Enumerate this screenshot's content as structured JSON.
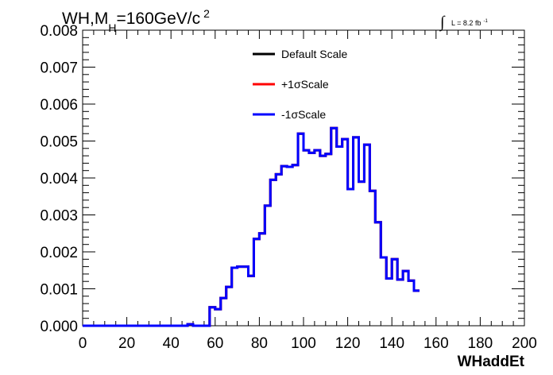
{
  "chart_data": {
    "type": "line",
    "title": {
      "prefix": "WH,M",
      "subscript": "H",
      "suffix": "=160GeV/c",
      "superscript": "2"
    },
    "luminosity": {
      "symbol": "∫",
      "text": "L = 8.2 fb",
      "superscript": "-1"
    },
    "xlabel": "WHaddEt",
    "ylabel": "",
    "xlim": [
      0,
      200
    ],
    "ylim": [
      0,
      0.008
    ],
    "x_ticks": [
      0,
      20,
      40,
      60,
      80,
      100,
      120,
      140,
      160,
      180,
      200
    ],
    "x_tick_labels": [
      "0",
      "20",
      "40",
      "60",
      "80",
      "100",
      "120",
      "140",
      "160",
      "180",
      "200"
    ],
    "y_ticks": [
      0,
      0.001,
      0.002,
      0.003,
      0.004,
      0.005,
      0.006,
      0.007,
      0.008
    ],
    "y_tick_labels": [
      "0.000",
      "0.001",
      "0.002",
      "0.003",
      "0.004",
      "0.005",
      "0.006",
      "0.007",
      "0.008"
    ],
    "bin_width": 2.5,
    "bin_edges_start": 0,
    "legend": [
      {
        "label": "Default Scale",
        "color": "#000000"
      },
      {
        "label": "+1σScale",
        "color": "#ff0000"
      },
      {
        "label": "-1σScale",
        "color": "#0000ff"
      }
    ],
    "legend_position": "top-center",
    "grid": false,
    "series": [
      {
        "name": "Default Scale",
        "color": "#000000",
        "values": [
          0,
          0,
          0,
          0,
          0,
          0,
          0,
          0,
          0,
          0,
          0,
          0,
          0,
          0,
          0,
          0,
          0,
          0,
          0,
          4e-05,
          0,
          0,
          0,
          0.0005,
          0.00045,
          0.00075,
          0.00105,
          0.00157,
          0.0016,
          0.0016,
          0.00135,
          0.00235,
          0.0025,
          0.00325,
          0.00395,
          0.0041,
          0.00432,
          0.0043,
          0.00435,
          0.0052,
          0.00475,
          0.00468,
          0.00475,
          0.0046,
          0.00465,
          0.00535,
          0.00485,
          0.00505,
          0.0037,
          0.0051,
          0.0039,
          0.0049,
          0.00365,
          0.0028,
          0.00185,
          0.00128,
          0.0018,
          0.00125,
          0.00148,
          0.00122,
          0.00095
        ]
      },
      {
        "name": "+1σScale",
        "color": "#ff0000",
        "values": [
          0,
          0,
          0,
          0,
          0,
          0,
          0,
          0,
          0,
          0,
          0,
          0,
          0,
          0,
          0,
          0,
          0,
          0,
          0,
          4e-05,
          0,
          0,
          0,
          0.0005,
          0.00045,
          0.00075,
          0.00105,
          0.00157,
          0.0016,
          0.0016,
          0.00135,
          0.00235,
          0.0025,
          0.00325,
          0.00395,
          0.0041,
          0.00432,
          0.0043,
          0.00435,
          0.0052,
          0.00475,
          0.00468,
          0.00475,
          0.0046,
          0.00465,
          0.00535,
          0.00485,
          0.00505,
          0.0037,
          0.0051,
          0.0039,
          0.0049,
          0.00365,
          0.0028,
          0.00185,
          0.00128,
          0.0018,
          0.00125,
          0.00148,
          0.00122,
          0.00095
        ]
      },
      {
        "name": "-1σScale",
        "color": "#0000ff",
        "values": [
          0,
          0,
          0,
          0,
          0,
          0,
          0,
          0,
          0,
          0,
          0,
          0,
          0,
          0,
          0,
          0,
          0,
          0,
          0,
          4e-05,
          0,
          0,
          0,
          0.0005,
          0.00045,
          0.00075,
          0.00105,
          0.00157,
          0.0016,
          0.0016,
          0.00135,
          0.00235,
          0.0025,
          0.00325,
          0.00395,
          0.0041,
          0.00432,
          0.0043,
          0.00435,
          0.0052,
          0.00475,
          0.00468,
          0.00475,
          0.0046,
          0.00465,
          0.00535,
          0.00485,
          0.00505,
          0.0037,
          0.0051,
          0.0039,
          0.0049,
          0.00365,
          0.0028,
          0.00185,
          0.00128,
          0.0018,
          0.00125,
          0.00148,
          0.00122,
          0.00095
        ]
      }
    ]
  }
}
